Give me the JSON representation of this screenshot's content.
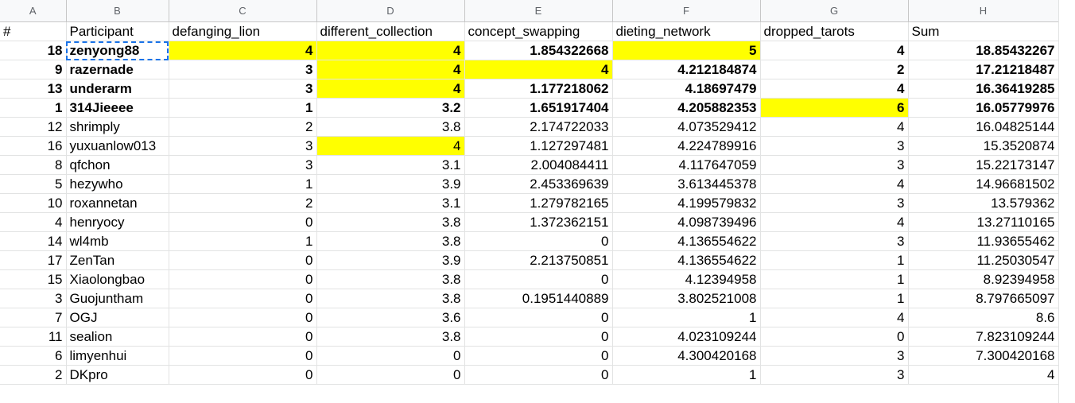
{
  "column_letters": [
    "A",
    "B",
    "C",
    "D",
    "E",
    "F",
    "G",
    "H"
  ],
  "header_row": [
    "#",
    "Participant",
    "defanging_lion",
    "different_collection",
    "concept_swapping",
    "dieting_network",
    "dropped_tarots",
    "Sum"
  ],
  "rows": [
    {
      "cells": [
        "18",
        "zenyong88",
        "4",
        "4",
        "1.854322668",
        "5",
        "4",
        "18.85432267"
      ],
      "bold": true,
      "highlight": [
        2,
        3,
        5
      ]
    },
    {
      "cells": [
        "9",
        "razernade",
        "3",
        "4",
        "4",
        "4.212184874",
        "2",
        "17.21218487"
      ],
      "bold": true,
      "highlight": [
        3,
        4
      ]
    },
    {
      "cells": [
        "13",
        "underarm",
        "3",
        "4",
        "1.177218062",
        "4.18697479",
        "4",
        "16.36419285"
      ],
      "bold": true,
      "highlight": [
        3
      ]
    },
    {
      "cells": [
        "1",
        "314Jieeee",
        "1",
        "3.2",
        "1.651917404",
        "4.205882353",
        "6",
        "16.05779976"
      ],
      "bold": true,
      "highlight": [
        6
      ]
    },
    {
      "cells": [
        "12",
        "shrimply",
        "2",
        "3.8",
        "2.174722033",
        "4.073529412",
        "4",
        "16.04825144"
      ],
      "bold": false,
      "highlight": []
    },
    {
      "cells": [
        "16",
        "yuxuanlow013",
        "3",
        "4",
        "1.127297481",
        "4.224789916",
        "3",
        "15.3520874"
      ],
      "bold": false,
      "highlight": [
        3
      ]
    },
    {
      "cells": [
        "8",
        "qfchon",
        "3",
        "3.1",
        "2.004084411",
        "4.117647059",
        "3",
        "15.22173147"
      ],
      "bold": false,
      "highlight": []
    },
    {
      "cells": [
        "5",
        "hezywho",
        "1",
        "3.9",
        "2.453369639",
        "3.613445378",
        "4",
        "14.96681502"
      ],
      "bold": false,
      "highlight": []
    },
    {
      "cells": [
        "10",
        "roxannetan",
        "2",
        "3.1",
        "1.279782165",
        "4.199579832",
        "3",
        "13.579362"
      ],
      "bold": false,
      "highlight": []
    },
    {
      "cells": [
        "4",
        "henryocy",
        "0",
        "3.8",
        "1.372362151",
        "4.098739496",
        "4",
        "13.27110165"
      ],
      "bold": false,
      "highlight": []
    },
    {
      "cells": [
        "14",
        "wl4mb",
        "1",
        "3.8",
        "0",
        "4.136554622",
        "3",
        "11.93655462"
      ],
      "bold": false,
      "highlight": []
    },
    {
      "cells": [
        "17",
        "ZenTan",
        "0",
        "3.9",
        "2.213750851",
        "4.136554622",
        "1",
        "11.25030547"
      ],
      "bold": false,
      "highlight": []
    },
    {
      "cells": [
        "15",
        "Xiaolongbao",
        "0",
        "3.8",
        "0",
        "4.12394958",
        "1",
        "8.92394958"
      ],
      "bold": false,
      "highlight": []
    },
    {
      "cells": [
        "3",
        "Guojuntham",
        "0",
        "3.8",
        "0.1951440889",
        "3.802521008",
        "1",
        "8.797665097"
      ],
      "bold": false,
      "highlight": []
    },
    {
      "cells": [
        "7",
        "OGJ",
        "0",
        "3.6",
        "0",
        "1",
        "4",
        "8.6"
      ],
      "bold": false,
      "highlight": []
    },
    {
      "cells": [
        "11",
        "sealion",
        "0",
        "3.8",
        "0",
        "4.023109244",
        "0",
        "7.823109244"
      ],
      "bold": false,
      "highlight": []
    },
    {
      "cells": [
        "6",
        "limyenhui",
        "0",
        "0",
        "0",
        "4.300420168",
        "3",
        "7.300420168"
      ],
      "bold": false,
      "highlight": []
    },
    {
      "cells": [
        "2",
        "DKpro",
        "0",
        "0",
        "0",
        "1",
        "3",
        "4"
      ],
      "bold": false,
      "highlight": []
    }
  ],
  "colors": {
    "highlight": "#ffff00",
    "selection": "#1a73e8"
  }
}
